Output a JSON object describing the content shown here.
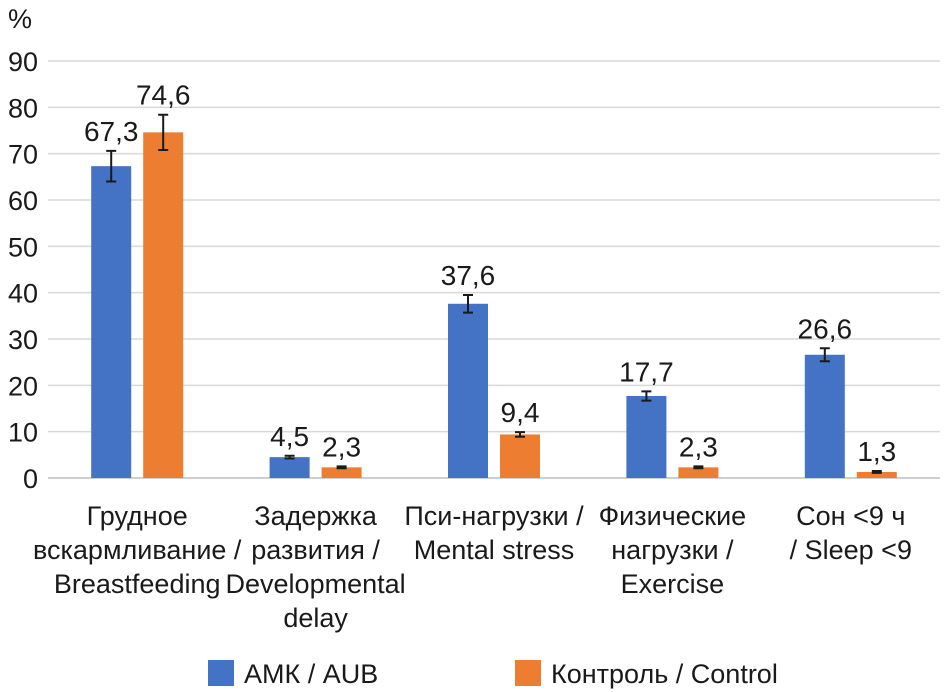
{
  "chart_data": {
    "type": "bar",
    "title": "",
    "ylabel": "%",
    "xlabel": "",
    "ylim": [
      0,
      90
    ],
    "yticks": [
      0,
      10,
      20,
      30,
      40,
      50,
      60,
      70,
      80,
      90
    ],
    "grid": true,
    "legend_position": "bottom",
    "categories": [
      [
        "Грудное",
        "вскармливание /",
        "Breastfeeding"
      ],
      [
        "Задержка",
        "развития /",
        "Developmental",
        "delay"
      ],
      [
        "Пси-нагрузки /",
        "Mental stress"
      ],
      [
        "Физические",
        "нагрузки /",
        "Exercise"
      ],
      [
        "Сон <9 ч",
        "/ Sleep <9"
      ]
    ],
    "series": [
      {
        "name": "АМК / AUB",
        "color": "#4472c4",
        "values": [
          67.3,
          4.5,
          37.6,
          17.7,
          26.6
        ],
        "labels": [
          "67,3",
          "4,5",
          "37,6",
          "17,7",
          "26,6"
        ],
        "errors": [
          3.3,
          0.3,
          1.9,
          1.0,
          1.4
        ]
      },
      {
        "name": "Контроль / Control",
        "color": "#ed7d31",
        "values": [
          74.6,
          2.3,
          9.4,
          2.3,
          1.3
        ],
        "labels": [
          "74,6",
          "2,3",
          "9,4",
          "2,3",
          "1,3"
        ],
        "errors": [
          3.8,
          0.2,
          0.5,
          0.2,
          0.2
        ]
      }
    ]
  }
}
